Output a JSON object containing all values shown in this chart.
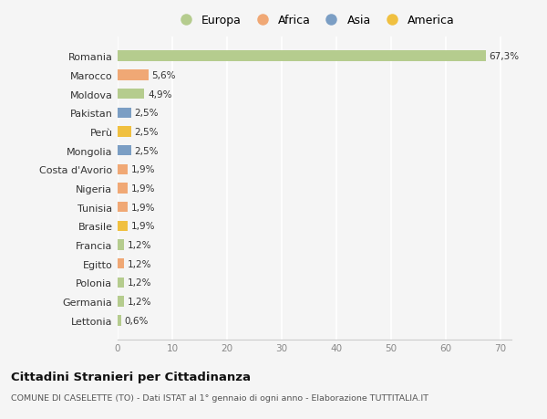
{
  "countries": [
    "Romania",
    "Marocco",
    "Moldova",
    "Pakistan",
    "Perù",
    "Mongolia",
    "Costa d'Avorio",
    "Nigeria",
    "Tunisia",
    "Brasile",
    "Francia",
    "Egitto",
    "Polonia",
    "Germania",
    "Lettonia"
  ],
  "values": [
    67.3,
    5.6,
    4.9,
    2.5,
    2.5,
    2.5,
    1.9,
    1.9,
    1.9,
    1.9,
    1.2,
    1.2,
    1.2,
    1.2,
    0.6
  ],
  "labels": [
    "67,3%",
    "5,6%",
    "4,9%",
    "2,5%",
    "2,5%",
    "2,5%",
    "1,9%",
    "1,9%",
    "1,9%",
    "1,9%",
    "1,2%",
    "1,2%",
    "1,2%",
    "1,2%",
    "0,6%"
  ],
  "continents": [
    "Europa",
    "Africa",
    "Europa",
    "Asia",
    "America",
    "Asia",
    "Africa",
    "Africa",
    "Africa",
    "America",
    "Europa",
    "Africa",
    "Europa",
    "Europa",
    "Europa"
  ],
  "colors": {
    "Europa": "#b5cc8e",
    "Africa": "#f0a875",
    "Asia": "#7b9ec4",
    "America": "#f0c040"
  },
  "legend_order": [
    "Europa",
    "Africa",
    "Asia",
    "America"
  ],
  "title": "Cittadini Stranieri per Cittadinanza",
  "subtitle": "COMUNE DI CASELETTE (TO) - Dati ISTAT al 1° gennaio di ogni anno - Elaborazione TUTTITALIA.IT",
  "xlim": [
    0,
    72
  ],
  "xticks": [
    0,
    10,
    20,
    30,
    40,
    50,
    60,
    70
  ],
  "bg_color": "#f5f5f5",
  "grid_color": "#ffffff"
}
